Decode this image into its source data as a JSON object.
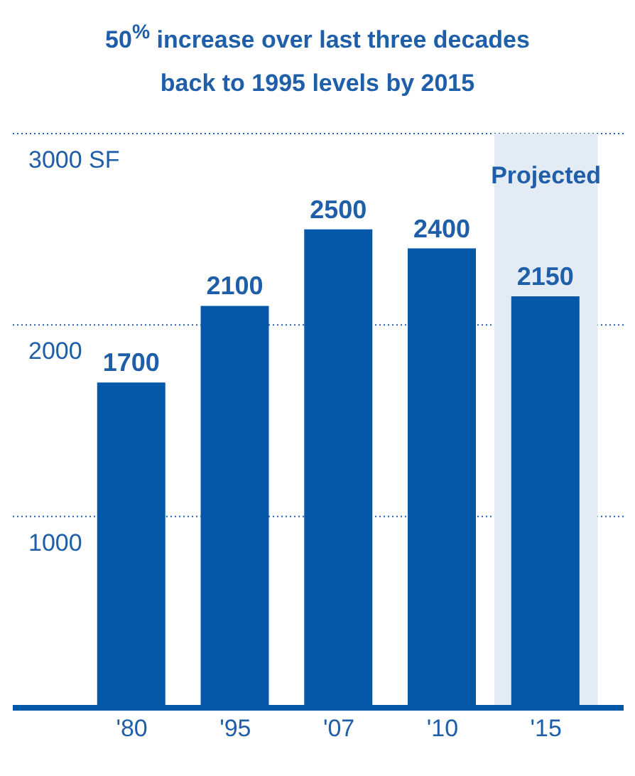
{
  "chart_data": {
    "type": "bar",
    "title": "50$^{%}$ increase over last three decades\nback to 1995 levels by 2015",
    "categories": [
      "'80",
      "'95",
      "'07",
      "'10",
      "'15"
    ],
    "values": [
      1700,
      2100,
      2500,
      2400,
      2150
    ],
    "color": "#0558a8",
    "ylim": [
      0,
      3000
    ],
    "yticks": [
      1000,
      2000,
      {
        "value": 3000,
        "label": "3000 SF"
      }
    ],
    "grid": "y",
    "data_labels": true,
    "bands": [
      {
        "axis": "x",
        "from": "'15",
        "to": "'15",
        "label": "Projected",
        "color": "#e3ebf5"
      }
    ]
  }
}
